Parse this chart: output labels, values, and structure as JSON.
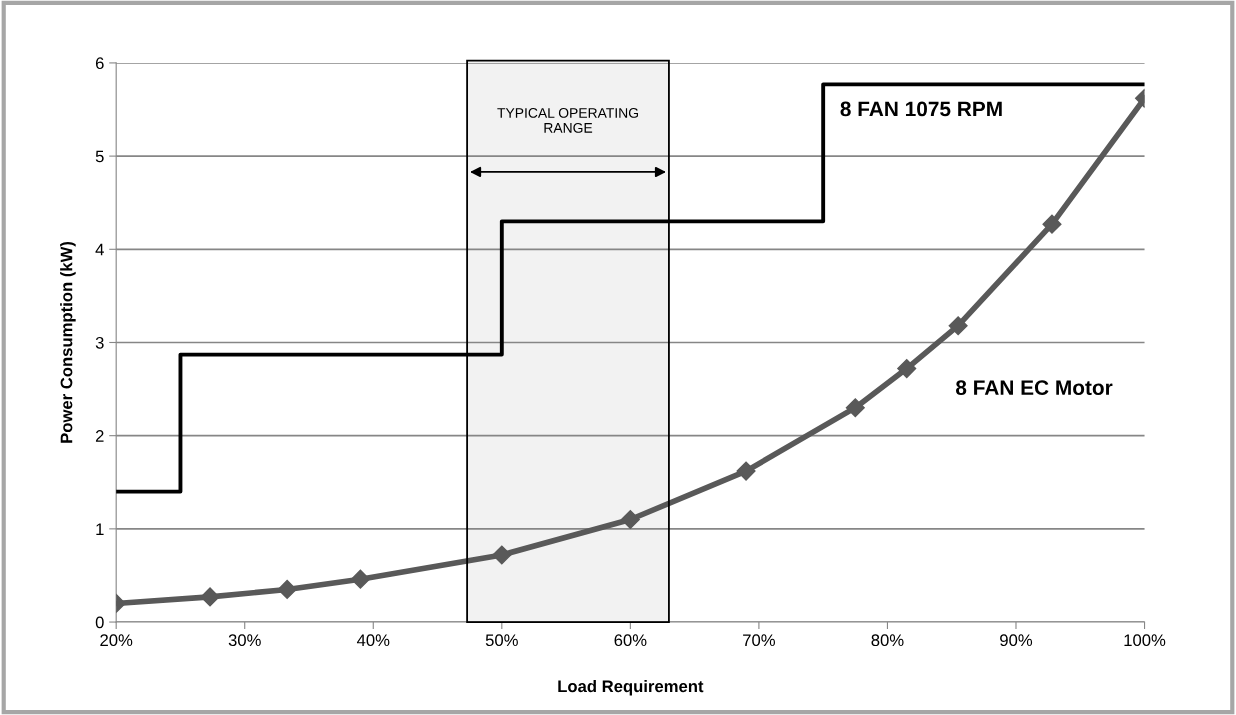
{
  "chart_data": {
    "type": "line",
    "xlabel": "Load Requirement",
    "ylabel": "Power Consumption (kW)",
    "series": [
      {
        "name": "8 FAN 1075 RPM",
        "type": "step",
        "color": "#000000",
        "marker": "none",
        "x": [
          20,
          25,
          50,
          75,
          100
        ],
        "values": [
          1.4,
          2.87,
          4.3,
          5.77,
          5.77
        ]
      },
      {
        "name": "8 FAN EC Motor",
        "color": "#595959",
        "marker": "diamond",
        "x": [
          20,
          27.3,
          33.3,
          39,
          50,
          60,
          69,
          77.5,
          81.5,
          85.5,
          92.8,
          100
        ],
        "values": [
          0.2,
          0.27,
          0.35,
          0.46,
          0.72,
          1.1,
          1.62,
          2.3,
          2.72,
          3.18,
          4.27,
          5.62
        ]
      }
    ],
    "bands": [
      {
        "axis": "x",
        "from": 47.3,
        "to": 63,
        "label": "TYPICAL OPERATING\nRANGE",
        "color": "#000000"
      }
    ],
    "xlim": [
      20,
      100
    ],
    "xticks": [
      {
        "value": 20,
        "label": "20%"
      },
      {
        "value": 30,
        "label": "30%"
      },
      {
        "value": 40,
        "label": "40%"
      },
      {
        "value": 50,
        "label": "50%"
      },
      {
        "value": 60,
        "label": "60%"
      },
      {
        "value": 70,
        "label": "70%"
      },
      {
        "value": 80,
        "label": "80%"
      },
      {
        "value": 90,
        "label": "90%"
      },
      {
        "value": 100,
        "label": "100%"
      }
    ],
    "ylim": [
      0,
      6
    ],
    "yticks": [
      0,
      1,
      2,
      3,
      4,
      5,
      6
    ],
    "grid": "y",
    "legend": false
  }
}
